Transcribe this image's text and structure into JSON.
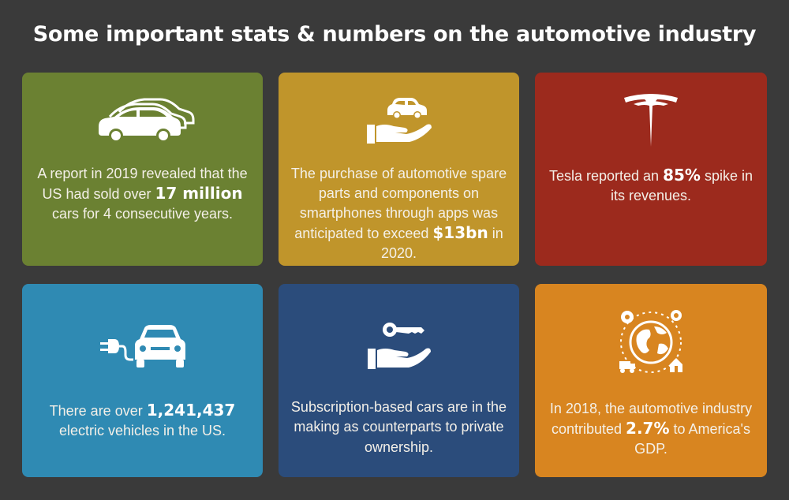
{
  "title": "Some important stats & numbers on the automotive industry",
  "colors": {
    "background": "#3a3a3a",
    "card_green": "#6b8132",
    "card_mustard": "#c0952b",
    "card_red": "#9c2a1d",
    "card_blue": "#2f8ab3",
    "card_navy": "#2b4c7b",
    "card_orange": "#d88520"
  },
  "cards": [
    {
      "icon": "cars-icon",
      "text_before": "A report in 2019 revealed that the US had sold over ",
      "highlight": "17 million",
      "text_after": " cars for 4 consecutive years."
    },
    {
      "icon": "hand-car-icon",
      "text_before": "The purchase of automotive spare parts and components on smartphones through apps was anticipated to exceed ",
      "highlight": "$13bn",
      "text_after": " in 2020."
    },
    {
      "icon": "tesla-logo-icon",
      "text_before": "Tesla reported an ",
      "highlight": "85%",
      "text_after": " spike in its revenues."
    },
    {
      "icon": "electric-car-plug-icon",
      "text_before": "There are over ",
      "highlight": "1,241,437",
      "text_after": " electric vehicles in the US."
    },
    {
      "icon": "hand-key-icon",
      "text_before": "Subscription-based cars are in the making as counterparts to private ownership.",
      "highlight": "",
      "text_after": ""
    },
    {
      "icon": "globe-industry-icon",
      "text_before": "In 2018, the automotive industry contributed ",
      "highlight": "2.7%",
      "text_after": " to America's GDP."
    }
  ]
}
